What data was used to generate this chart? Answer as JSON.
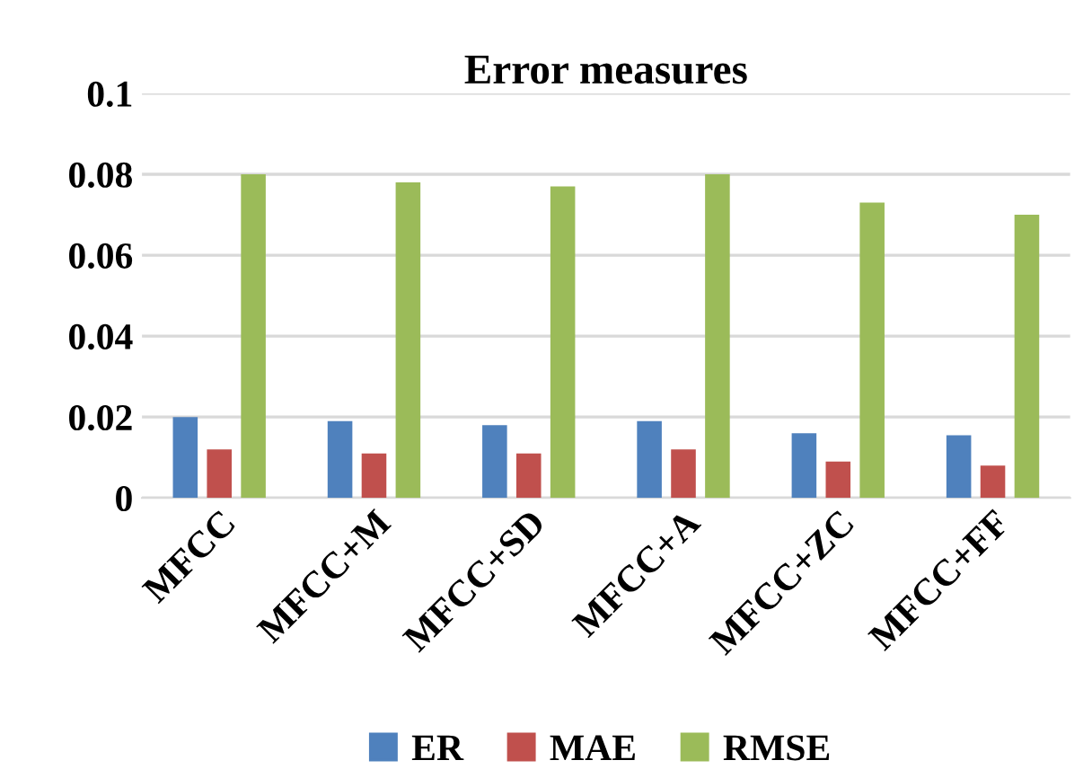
{
  "chart_data": {
    "type": "bar",
    "title": "Error measures",
    "categories": [
      "MFCC",
      "MFCC+M",
      "MFCC+SD",
      "MFCC+A",
      "MFCC+ZC",
      "MFCC+FF"
    ],
    "series": [
      {
        "name": "ER",
        "color": "#4f81bd",
        "values": [
          0.02,
          0.019,
          0.018,
          0.019,
          0.016,
          0.0155
        ]
      },
      {
        "name": "MAE",
        "color": "#c0504d",
        "values": [
          0.012,
          0.011,
          0.011,
          0.012,
          0.009,
          0.008
        ]
      },
      {
        "name": "RMSE",
        "color": "#9bbb59",
        "values": [
          0.08,
          0.078,
          0.077,
          0.08,
          0.073,
          0.07
        ]
      }
    ],
    "ylim": [
      0,
      0.1
    ],
    "yticks": [
      0,
      0.02,
      0.04,
      0.06,
      0.08,
      0.1
    ],
    "grid": "y",
    "legend": "bottom"
  }
}
